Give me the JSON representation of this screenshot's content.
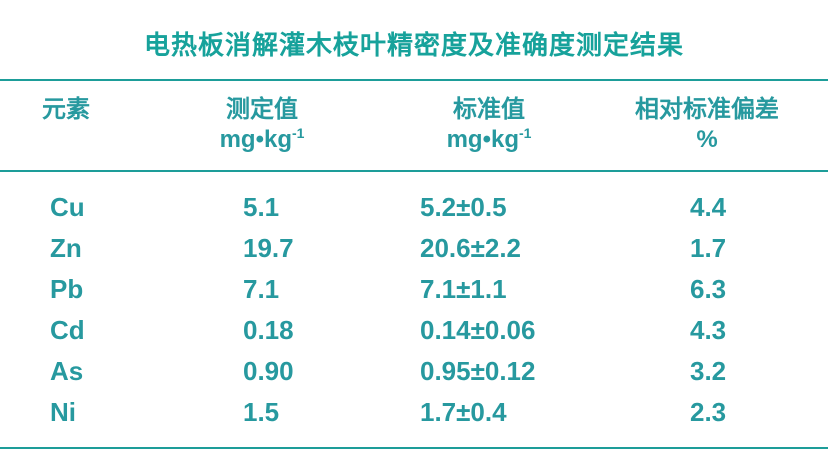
{
  "title": "电热板消解灌木枝叶精密度及准确度测定结果",
  "colors": {
    "title_text": "#17a29b",
    "table_text": "#27999f",
    "rule_line": "#1d9d99",
    "background": "#ffffff"
  },
  "table": {
    "headers": [
      {
        "line1": "元素"
      },
      {
        "line1": "测定值",
        "unit_base": "mg•kg",
        "unit_sup": "-1"
      },
      {
        "line1": "标准值",
        "unit_base": "mg•kg",
        "unit_sup": "-1"
      },
      {
        "line1": "相对标准偏差",
        "unit_base": "%"
      }
    ],
    "rows": [
      {
        "element": "Cu",
        "measured": "5.1",
        "standard": "5.2±0.5",
        "rsd": "4.4"
      },
      {
        "element": "Zn",
        "measured": "19.7",
        "standard": "20.6±2.2",
        "rsd": "1.7"
      },
      {
        "element": "Pb",
        "measured": "7.1",
        "standard": "7.1±1.1",
        "rsd": "6.3"
      },
      {
        "element": "Cd",
        "measured": "0.18",
        "standard": "0.14±0.06",
        "rsd": "4.3"
      },
      {
        "element": "As",
        "measured": "0.90",
        "standard": "0.95±0.12",
        "rsd": "3.2"
      },
      {
        "element": "Ni",
        "measured": "1.5",
        "standard": "1.7±0.4",
        "rsd": "2.3"
      }
    ]
  },
  "chart_data": {
    "type": "table",
    "title": "电热板消解灌木枝叶精密度及准确度测定结果",
    "columns": [
      "元素",
      "测定值 mg•kg⁻¹",
      "标准值 mg•kg⁻¹",
      "相对标准偏差 %"
    ],
    "rows": [
      [
        "Cu",
        5.1,
        "5.2±0.5",
        4.4
      ],
      [
        "Zn",
        19.7,
        "20.6±2.2",
        1.7
      ],
      [
        "Pb",
        7.1,
        "7.1±1.1",
        6.3
      ],
      [
        "Cd",
        0.18,
        "0.14±0.06",
        4.3
      ],
      [
        "As",
        0.9,
        "0.95±0.12",
        3.2
      ],
      [
        "Ni",
        1.5,
        "1.7±0.4",
        2.3
      ]
    ],
    "layout": {
      "header_alignment": "center",
      "data_alignment": "left",
      "grid": "horizontal rules only (below title, below header, below last row)"
    }
  }
}
